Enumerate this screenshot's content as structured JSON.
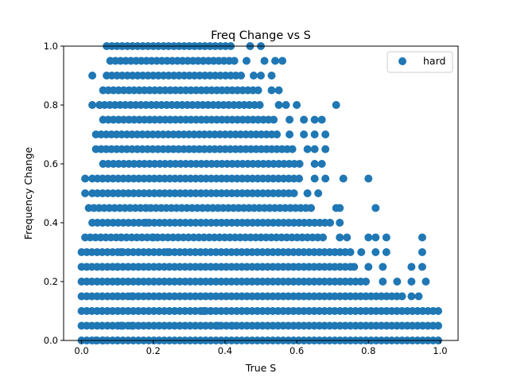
{
  "chart_data": {
    "type": "scatter",
    "title": "Freq Change vs S",
    "xlabel": "True S",
    "ylabel": "Frequency Change",
    "xlim": [
      -0.05,
      1.05
    ],
    "ylim": [
      0.0,
      1.0
    ],
    "xticks": [
      "0.0",
      "0.2",
      "0.4",
      "0.6",
      "0.8",
      "1.0"
    ],
    "yticks": [
      "0.0",
      "0.2",
      "0.4",
      "0.6",
      "0.8",
      "1.0"
    ],
    "grid": false,
    "legend_position": "top-right",
    "series": [
      {
        "name": "hard",
        "color": "#1f77b4",
        "bands": [
          {
            "y": 1.0,
            "x": [
              0.07,
              0.42
            ],
            "extra": [
              0.47,
              0.5
            ]
          },
          {
            "y": 0.95,
            "x": [
              0.08,
              0.43
            ],
            "extra": [
              0.46,
              0.51,
              0.54,
              0.56
            ]
          },
          {
            "y": 0.9,
            "x": [
              0.07,
              0.45
            ],
            "extra": [
              0.03,
              0.48,
              0.5,
              0.53
            ]
          },
          {
            "y": 0.85,
            "x": [
              0.06,
              0.5
            ],
            "extra": [
              0.53,
              0.55
            ]
          },
          {
            "y": 0.8,
            "x": [
              0.05,
              0.5
            ],
            "extra": [
              0.03,
              0.55,
              0.57,
              0.6,
              0.71
            ]
          },
          {
            "y": 0.75,
            "x": [
              0.06,
              0.55
            ],
            "extra": [
              0.58,
              0.62,
              0.65,
              0.67
            ]
          },
          {
            "y": 0.7,
            "x": [
              0.04,
              0.55
            ],
            "extra": [
              0.58,
              0.62,
              0.65,
              0.68
            ]
          },
          {
            "y": 0.65,
            "x": [
              0.04,
              0.6
            ],
            "extra": [
              0.63,
              0.65,
              0.68
            ]
          },
          {
            "y": 0.6,
            "x": [
              0.06,
              0.62
            ],
            "extra": [
              0.65,
              0.67
            ]
          },
          {
            "y": 0.55,
            "x": [
              0.03,
              0.62
            ],
            "extra": [
              0.01,
              0.65,
              0.68,
              0.73,
              0.8
            ]
          },
          {
            "y": 0.5,
            "x": [
              0.03,
              0.6
            ],
            "extra": [
              0.01,
              0.63,
              0.66
            ]
          },
          {
            "y": 0.45,
            "x": [
              0.02,
              0.65
            ],
            "extra": [
              0.18,
              0.71,
              0.72,
              0.82
            ]
          },
          {
            "y": 0.4,
            "x": [
              0.03,
              0.7
            ],
            "extra": [
              0.18,
              0.72
            ]
          },
          {
            "y": 0.35,
            "x": [
              0.01,
              0.68
            ],
            "extra": [
              0.11,
              0.2,
              0.72,
              0.74,
              0.8,
              0.82,
              0.85,
              0.95
            ]
          },
          {
            "y": 0.3,
            "x": [
              0.0,
              0.75
            ],
            "extra": [
              0.11,
              0.24,
              0.78,
              0.82,
              0.85,
              0.95
            ]
          },
          {
            "y": 0.25,
            "x": [
              0.0,
              0.76
            ],
            "extra": [
              0.1,
              0.76,
              0.8,
              0.84,
              0.92,
              0.95
            ]
          },
          {
            "y": 0.2,
            "x": [
              0.0,
              0.8
            ],
            "extra": [
              0.1,
              0.84,
              0.88,
              0.92,
              0.96
            ]
          },
          {
            "y": 0.15,
            "x": [
              0.0,
              0.9
            ],
            "extra": [
              0.1,
              0.14,
              0.92,
              0.94
            ]
          },
          {
            "y": 0.1,
            "x": [
              0.0,
              1.0
            ],
            "extra": [
              0.34,
              0.36
            ]
          },
          {
            "y": 0.05,
            "x": [
              0.0,
              1.0
            ],
            "extra": [
              0.11,
              0.14,
              0.38,
              0.42
            ]
          },
          {
            "y": 0.0,
            "x": [
              0.0,
              1.0
            ],
            "extra": [
              0.04,
              0.06,
              0.1
            ]
          }
        ]
      }
    ]
  }
}
